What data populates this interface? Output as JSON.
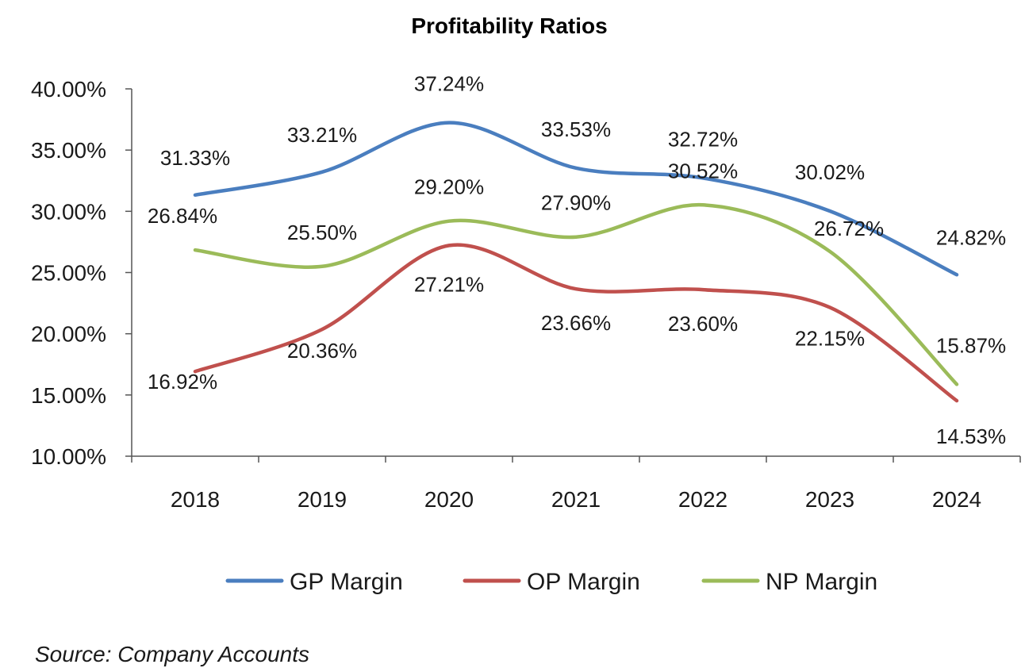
{
  "chart_data": {
    "type": "line",
    "title": "Profitability Ratios",
    "categories": [
      "2018",
      "2019",
      "2020",
      "2021",
      "2022",
      "2023",
      "2024"
    ],
    "ylim": [
      10,
      40
    ],
    "yticks": [
      10,
      15,
      20,
      25,
      30,
      35,
      40
    ],
    "ytick_labels": [
      "10.00%",
      "15.00%",
      "20.00%",
      "25.00%",
      "30.00%",
      "35.00%",
      "40.00%"
    ],
    "grid": false,
    "legend_position": "bottom",
    "series": [
      {
        "name": "GP Margin",
        "color": "#4a7ebf",
        "values": [
          31.33,
          33.21,
          37.24,
          33.53,
          32.72,
          30.02,
          24.82
        ],
        "labels": [
          "31.33%",
          "33.21%",
          "37.24%",
          "33.53%",
          "32.72%",
          "30.02%",
          "24.82%"
        ]
      },
      {
        "name": "OP Margin",
        "color": "#c0504d",
        "values": [
          16.92,
          20.36,
          27.21,
          23.66,
          23.6,
          22.15,
          14.53
        ],
        "labels": [
          "16.92%",
          "20.36%",
          "27.21%",
          "23.66%",
          "23.60%",
          "22.15%",
          "14.53%"
        ]
      },
      {
        "name": "NP Margin",
        "color": "#9bbb59",
        "values": [
          26.84,
          25.5,
          29.2,
          27.9,
          30.52,
          26.72,
          15.87
        ],
        "labels": [
          "26.84%",
          "25.50%",
          "29.20%",
          "27.90%",
          "30.52%",
          "26.72%",
          "15.87%"
        ]
      }
    ]
  },
  "source": "Source: Company Accounts"
}
